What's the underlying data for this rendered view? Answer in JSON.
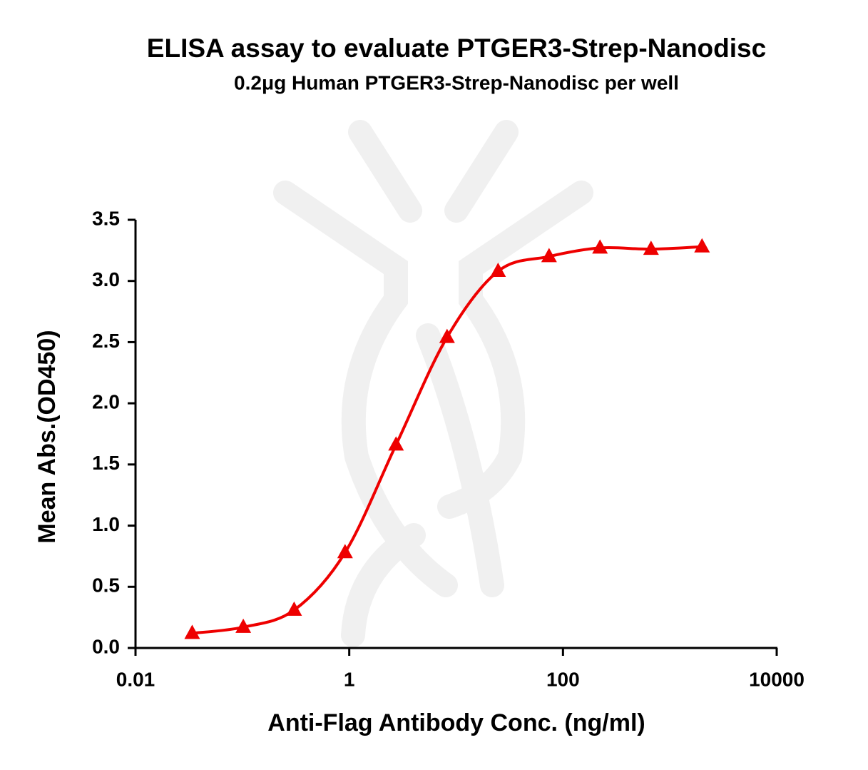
{
  "chart_data": {
    "type": "scatter",
    "title": "ELISA assay to evaluate PTGER3-Strep-Nanodisc",
    "subtitle": "0.2μg Human PTGER3-Strep-Nanodisc per well",
    "x_label": "Anti-Flag Antibody Conc. (ng/ml)",
    "y_label": "Mean Abs.(OD450)",
    "x_scale": "log",
    "xlim": [
      0.01,
      10000
    ],
    "xticks": [
      0.01,
      1,
      100,
      10000
    ],
    "ylim": [
      0,
      3.5
    ],
    "yticks": [
      {
        "value": 0,
        "label": "0.0"
      },
      0.5,
      {
        "value": 1,
        "label": "1.0"
      },
      1.5,
      {
        "value": 2,
        "label": "2.0"
      },
      2.5,
      {
        "value": 3,
        "label": "3.0"
      },
      3.5
    ],
    "series": [
      {
        "color": "#ee0000",
        "marker": "triangle",
        "fit_curve": true,
        "x": [
          0.0339,
          0.102,
          0.305,
          0.914,
          2.74,
          8.23,
          24.7,
          74.1,
          222,
          667,
          2000
        ],
        "values": [
          0.12,
          0.17,
          0.31,
          0.78,
          1.66,
          2.54,
          3.08,
          3.2,
          3.27,
          3.26,
          3.28
        ]
      }
    ]
  }
}
